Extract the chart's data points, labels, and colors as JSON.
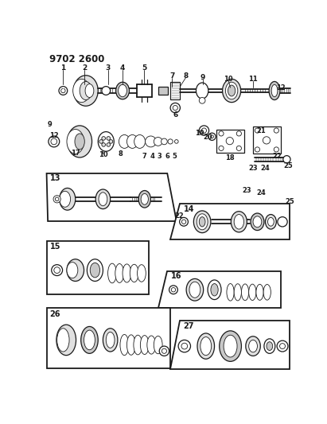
{
  "title": "9702 2600",
  "bg_color": "#ffffff",
  "line_color": "#1a1a1a",
  "fig_width": 4.11,
  "fig_height": 5.33,
  "dpi": 100,
  "gray1": "#c8c8c8",
  "gray2": "#e0e0e0",
  "gray3": "#a0a0a0",
  "dark": "#2a2a2a"
}
